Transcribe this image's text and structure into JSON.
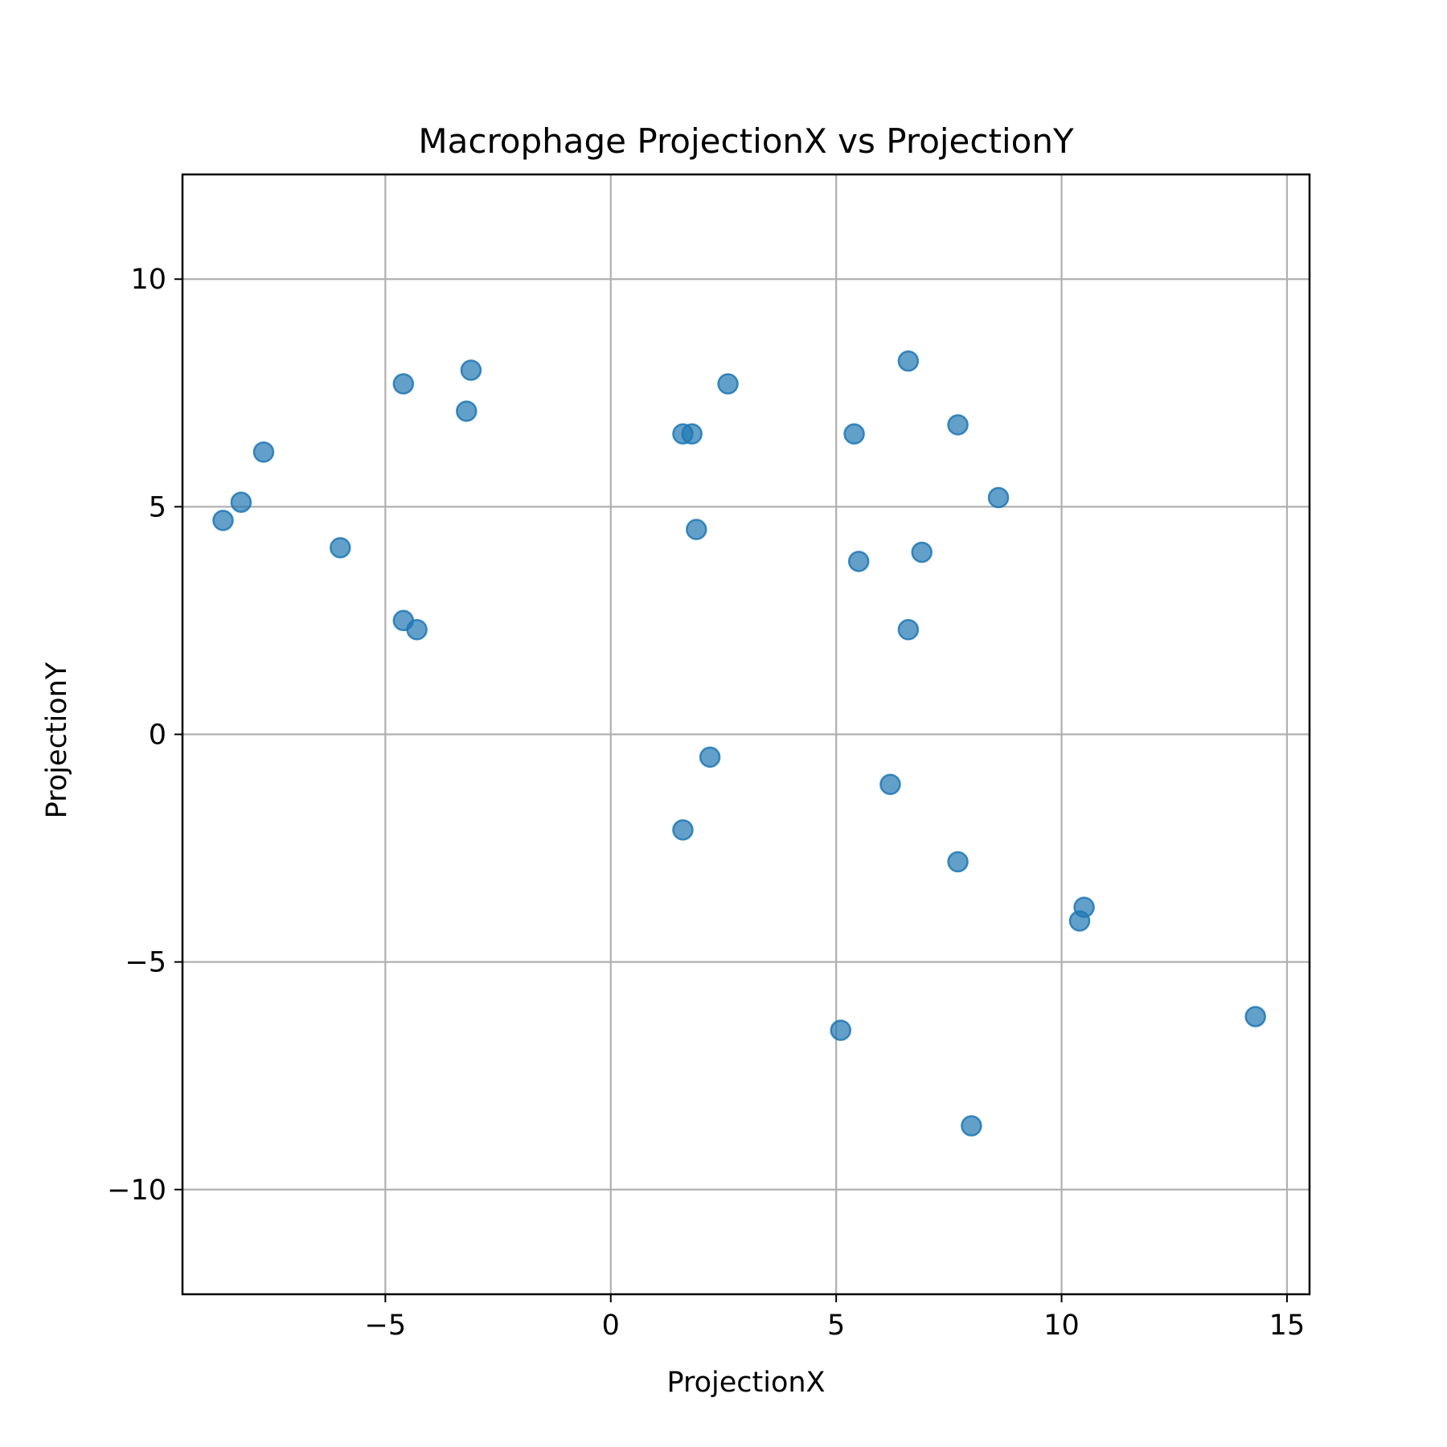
{
  "chart_data": {
    "type": "scatter",
    "title": "Macrophage ProjectionX vs ProjectionY",
    "xlabel": "ProjectionX",
    "ylabel": "ProjectionY",
    "xlim": [
      -9.5,
      15.5
    ],
    "ylim": [
      -12.3,
      12.3
    ],
    "xticks": [
      -5,
      0,
      5,
      10,
      15
    ],
    "yticks": [
      -10,
      -5,
      0,
      5,
      10
    ],
    "xtick_labels": [
      "−5",
      "0",
      "5",
      "10",
      "15"
    ],
    "ytick_labels": [
      "−10",
      "−5",
      "0",
      "5",
      "10"
    ],
    "grid": true,
    "marker_color": "#1f77b4",
    "marker_alpha": 0.7,
    "points": [
      {
        "x": -8.6,
        "y": 4.7
      },
      {
        "x": -8.2,
        "y": 5.1
      },
      {
        "x": -7.7,
        "y": 6.2
      },
      {
        "x": -6.0,
        "y": 4.1
      },
      {
        "x": -4.6,
        "y": 7.7
      },
      {
        "x": -4.6,
        "y": 2.5
      },
      {
        "x": -4.3,
        "y": 2.3
      },
      {
        "x": -3.2,
        "y": 7.1
      },
      {
        "x": -3.1,
        "y": 8.0
      },
      {
        "x": 1.6,
        "y": 6.6
      },
      {
        "x": 1.8,
        "y": 6.6
      },
      {
        "x": 1.9,
        "y": 4.5
      },
      {
        "x": 2.6,
        "y": 7.7
      },
      {
        "x": 1.6,
        "y": -2.1
      },
      {
        "x": 2.2,
        "y": -0.5
      },
      {
        "x": 5.1,
        "y": -6.5
      },
      {
        "x": 5.4,
        "y": 6.6
      },
      {
        "x": 5.5,
        "y": 3.8
      },
      {
        "x": 6.2,
        "y": -1.1
      },
      {
        "x": 6.6,
        "y": 8.2
      },
      {
        "x": 6.6,
        "y": 2.3
      },
      {
        "x": 6.9,
        "y": 4.0
      },
      {
        "x": 7.7,
        "y": 6.8
      },
      {
        "x": 7.7,
        "y": -2.8
      },
      {
        "x": 8.0,
        "y": -8.6
      },
      {
        "x": 8.6,
        "y": 5.2
      },
      {
        "x": 10.4,
        "y": -4.1
      },
      {
        "x": 10.5,
        "y": -3.8
      },
      {
        "x": 14.3,
        "y": -6.2
      }
    ]
  }
}
